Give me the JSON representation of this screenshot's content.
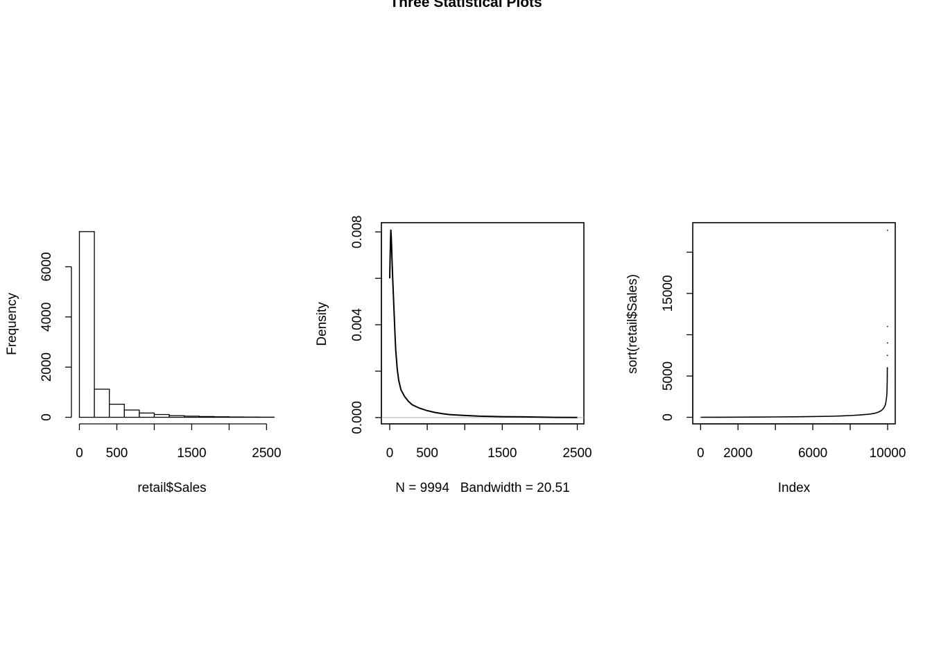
{
  "page": {
    "title": "Three Statistical Plots"
  },
  "chart_data": [
    {
      "type": "bar",
      "subtype": "histogram",
      "xlabel": "retail$Sales",
      "ylabel": "Frequency",
      "xlim": [
        0,
        2600
      ],
      "ylim": [
        0,
        7400
      ],
      "x_ticks": [
        0,
        500,
        1000,
        1500,
        2000,
        2500
      ],
      "x_tick_labels": [
        "0",
        "500",
        "",
        "1500",
        "",
        "2500"
      ],
      "y_ticks": [
        0,
        2000,
        4000,
        6000
      ],
      "y_tick_labels": [
        "0",
        "2000",
        "4000",
        "6000"
      ],
      "bin_width": 200,
      "bins": [
        {
          "x0": 0,
          "x1": 200,
          "count": 7400
        },
        {
          "x0": 200,
          "x1": 400,
          "count": 1120
        },
        {
          "x0": 400,
          "x1": 600,
          "count": 520
        },
        {
          "x0": 600,
          "x1": 800,
          "count": 290
        },
        {
          "x0": 800,
          "x1": 1000,
          "count": 170
        },
        {
          "x0": 1000,
          "x1": 1200,
          "count": 110
        },
        {
          "x0": 1200,
          "x1": 1400,
          "count": 65
        },
        {
          "x0": 1400,
          "x1": 1600,
          "count": 45
        },
        {
          "x0": 1600,
          "x1": 1800,
          "count": 30
        },
        {
          "x0": 1800,
          "x1": 2000,
          "count": 20
        },
        {
          "x0": 2000,
          "x1": 2200,
          "count": 12
        },
        {
          "x0": 2200,
          "x1": 2400,
          "count": 8
        },
        {
          "x0": 2400,
          "x1": 2600,
          "count": 5
        }
      ]
    },
    {
      "type": "line",
      "subtype": "density",
      "xlabel": "N = 9994   Bandwidth = 20.51",
      "ylabel": "Density",
      "xlim": [
        -10,
        2530
      ],
      "ylim": [
        0,
        0.0082
      ],
      "x_ticks": [
        0,
        500,
        1000,
        1500,
        2000,
        2500
      ],
      "x_tick_labels": [
        "0",
        "500",
        "",
        "1500",
        "",
        "2500"
      ],
      "y_ticks": [
        0,
        0.002,
        0.004,
        0.006,
        0.008
      ],
      "y_tick_labels": [
        "0.000",
        "",
        "0.004",
        "",
        "0.008"
      ],
      "x": [
        0,
        5,
        10,
        15,
        20,
        25,
        30,
        40,
        50,
        60,
        70,
        80,
        100,
        120,
        150,
        200,
        250,
        300,
        400,
        500,
        600,
        700,
        800,
        1000,
        1200,
        1500,
        1800,
        2000,
        2200,
        2500
      ],
      "y": [
        0.006,
        0.0068,
        0.0076,
        0.0081,
        0.0078,
        0.0074,
        0.0069,
        0.006,
        0.0052,
        0.0044,
        0.0036,
        0.0029,
        0.0021,
        0.0016,
        0.0012,
        0.0009,
        0.0007,
        0.00055,
        0.0004,
        0.0003,
        0.00022,
        0.00017,
        0.00013,
        9e-05,
        6e-05,
        4e-05,
        3e-05,
        2e-05,
        1e-05,
        5e-06
      ]
    },
    {
      "type": "scatter",
      "subtype": "index-plot",
      "xlabel": "Index",
      "ylabel": "sort(retail$Sales)",
      "xlim": [
        -400,
        10400
      ],
      "ylim": [
        -900,
        23700
      ],
      "x_ticks": [
        0,
        2000,
        4000,
        6000,
        8000,
        10000
      ],
      "x_tick_labels": [
        "0",
        "2000",
        "",
        "6000",
        "",
        "10000"
      ],
      "y_ticks": [
        0,
        5000,
        10000,
        15000,
        20000
      ],
      "y_tick_labels": [
        "0",
        "5000",
        "",
        "15000",
        ""
      ],
      "x": [
        0,
        1000,
        2000,
        3000,
        4000,
        5000,
        6000,
        7000,
        7500,
        8000,
        8500,
        9000,
        9300,
        9500,
        9650,
        9750,
        9800,
        9850,
        9880,
        9900,
        9920,
        9940,
        9955,
        9965,
        9972,
        9978,
        9983,
        9987,
        9990,
        9992,
        9993,
        9994
      ],
      "y": [
        0.4,
        5,
        13,
        25,
        40,
        60,
        90,
        130,
        160,
        210,
        280,
        370,
        480,
        620,
        800,
        1000,
        1150,
        1350,
        1550,
        1750,
        2000,
        2350,
        2700,
        3100,
        3600,
        4200,
        5000,
        6000,
        7500,
        9000,
        11000,
        22638
      ]
    }
  ]
}
